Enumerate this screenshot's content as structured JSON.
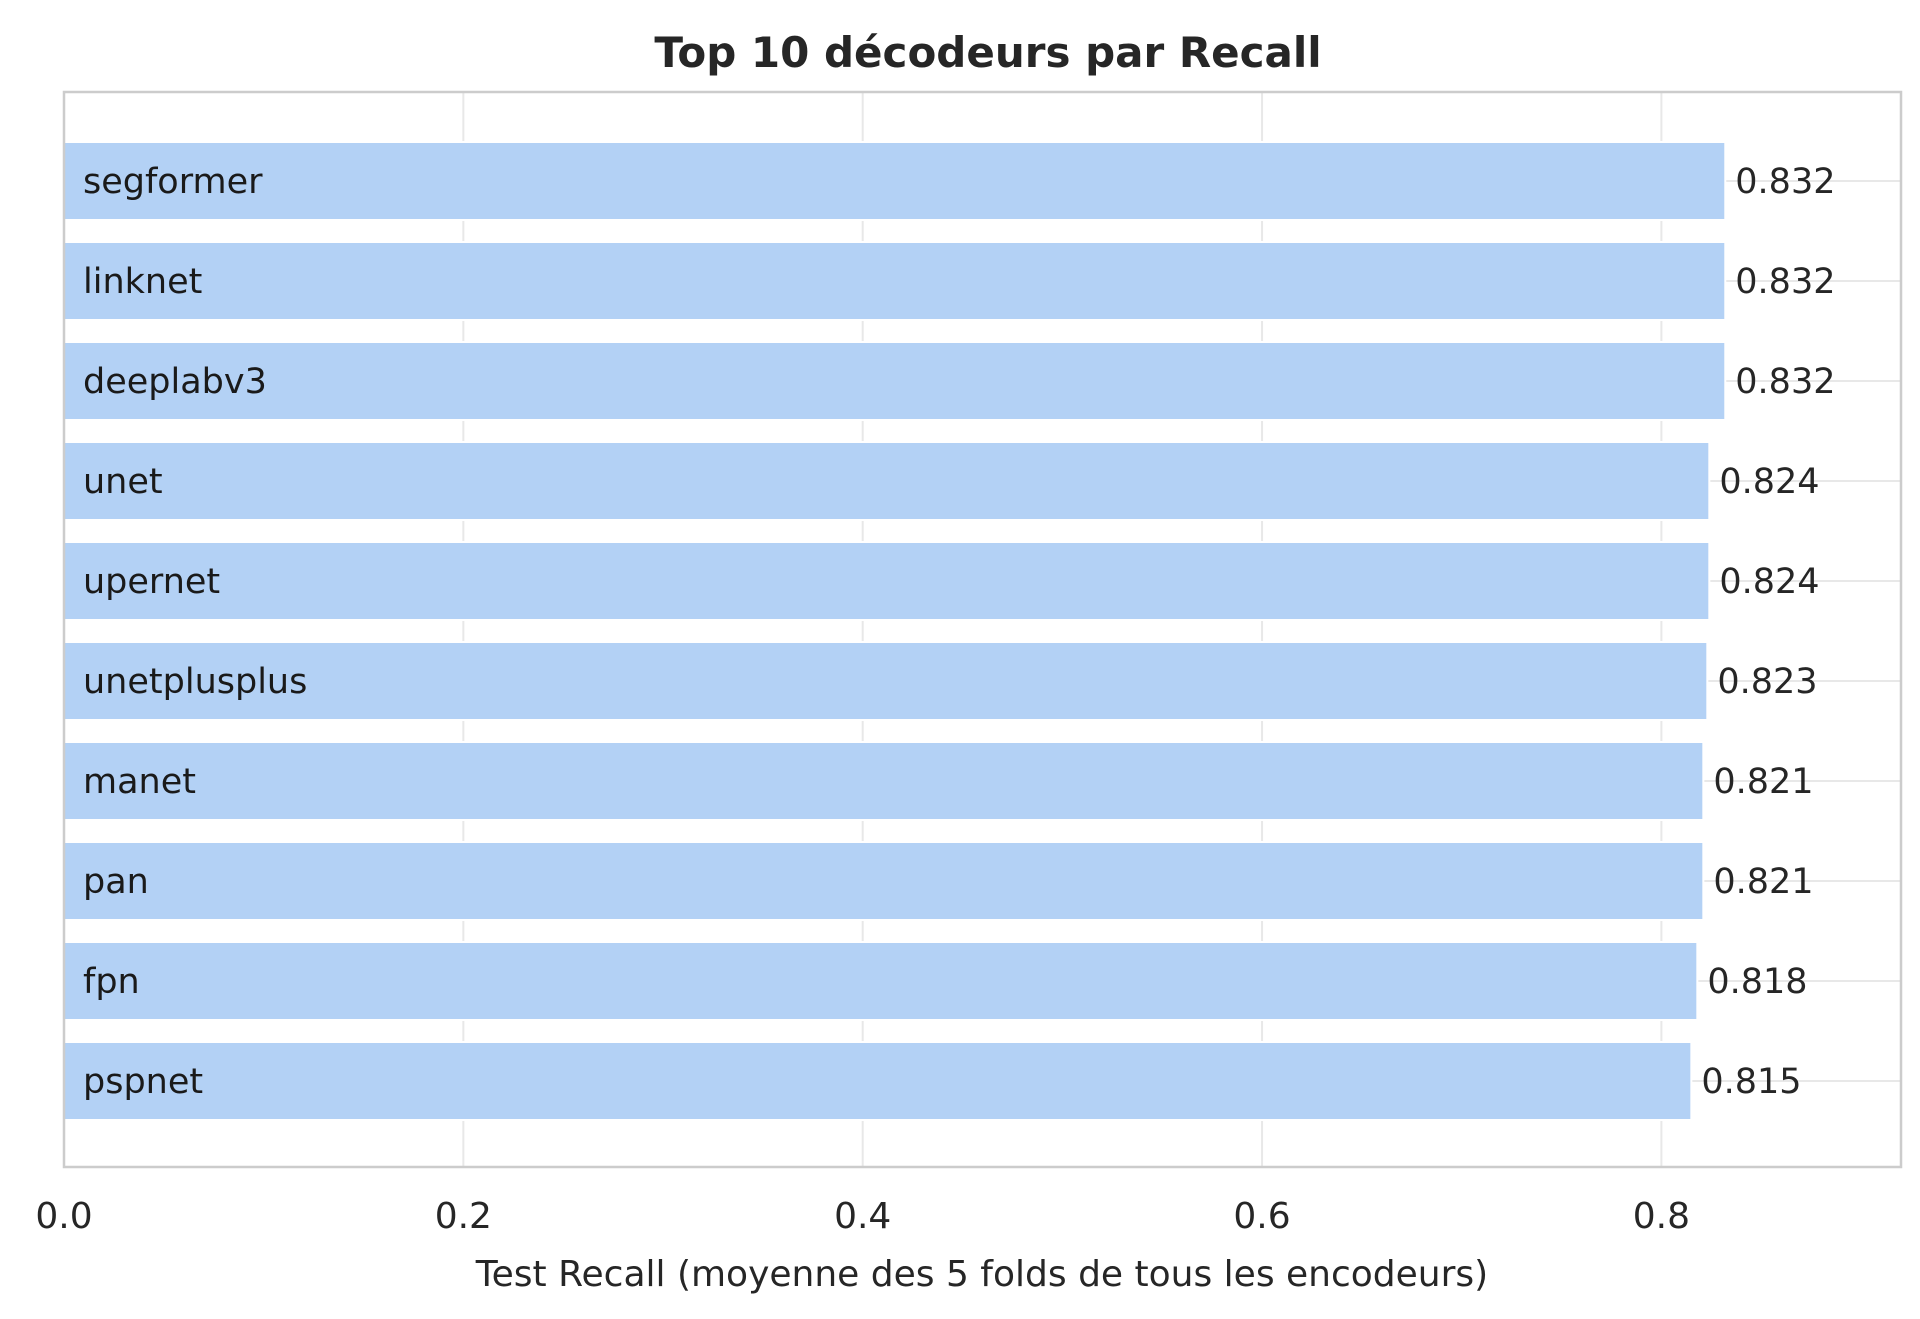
{
  "chart_data": {
    "type": "bar",
    "orientation": "horizontal",
    "title": "Top 10 décodeurs par Recall",
    "xlabel": "Test Recall (moyenne des 5 folds de tous les encodeurs)",
    "ylabel": "",
    "categories": [
      "segformer",
      "linknet",
      "deeplabv3",
      "unet",
      "upernet",
      "unetplusplus",
      "manet",
      "pan",
      "fpn",
      "pspnet"
    ],
    "values": [
      0.832,
      0.832,
      0.832,
      0.824,
      0.824,
      0.823,
      0.821,
      0.821,
      0.818,
      0.815
    ],
    "value_labels": [
      "0.832",
      "0.832",
      "0.832",
      "0.824",
      "0.824",
      "0.823",
      "0.821",
      "0.821",
      "0.818",
      "0.815"
    ],
    "xlim": [
      0,
      0.92
    ],
    "xticks": [
      0.0,
      0.2,
      0.4,
      0.6,
      0.8
    ],
    "xtick_labels": [
      "0.0",
      "0.2",
      "0.4",
      "0.6",
      "0.8"
    ],
    "grid": true,
    "bar_color": "#b3d1f5"
  }
}
